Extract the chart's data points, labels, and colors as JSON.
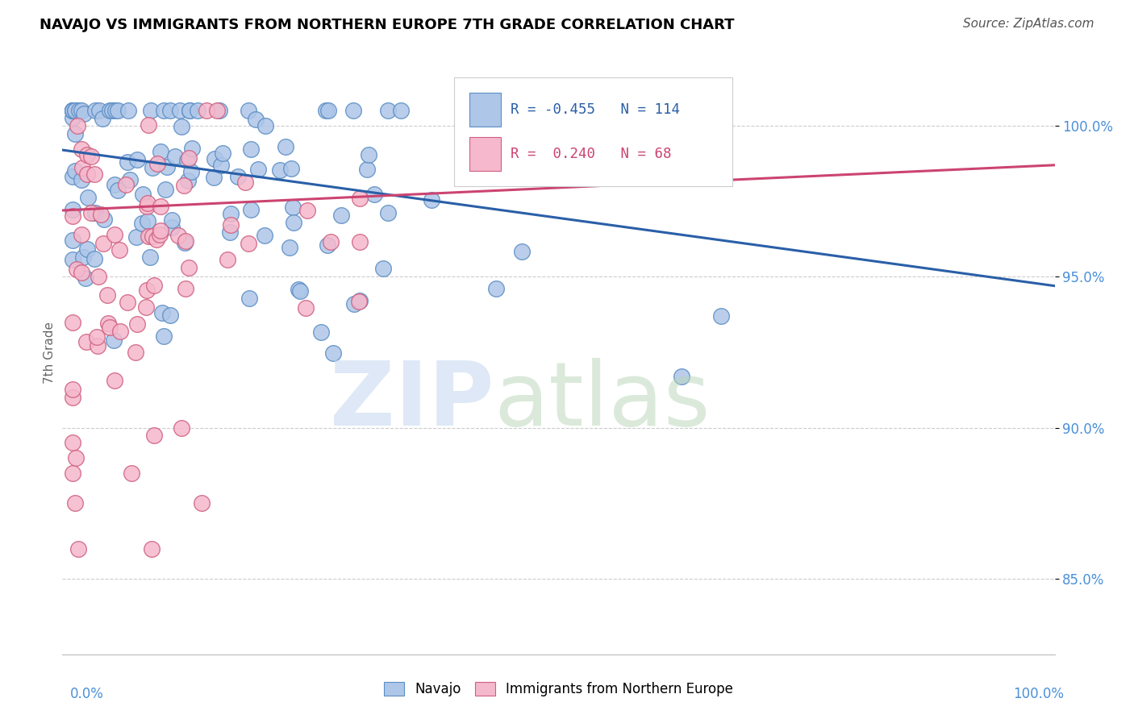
{
  "title": "NAVAJO VS IMMIGRANTS FROM NORTHERN EUROPE 7TH GRADE CORRELATION CHART",
  "source": "Source: ZipAtlas.com",
  "ylabel": "7th Grade",
  "navajo_R": -0.455,
  "navajo_N": 114,
  "imm_R": 0.24,
  "imm_N": 68,
  "navajo_color": "#aec6e8",
  "navajo_edge_color": "#5b8ec4",
  "navajo_line_color": "#2a5fa8",
  "imm_color": "#f5b8cc",
  "imm_edge_color": "#d06080",
  "imm_line_color": "#cc4470",
  "ytick_color": "#4a90d9",
  "yticks": [
    85.0,
    90.0,
    95.0,
    100.0
  ],
  "xlim": [
    0.0,
    1.0
  ],
  "ylim": [
    82.5,
    102.5
  ],
  "title_fontsize": 13,
  "source_fontsize": 11,
  "axis_label_fontsize": 11,
  "tick_fontsize": 12
}
